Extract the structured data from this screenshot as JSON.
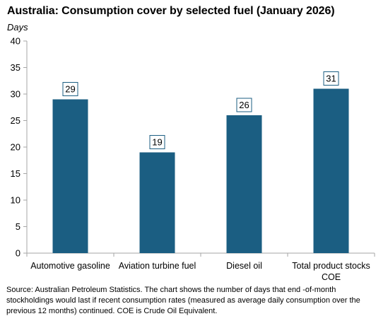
{
  "chart_data": {
    "type": "bar",
    "title": "Australia: Consumption cover by selected fuel (January 2026)",
    "ylabel": "Days",
    "xlabel": "",
    "categories": [
      [
        "Automotive gasoline"
      ],
      [
        "Aviation turbine fuel"
      ],
      [
        "Diesel oil"
      ],
      [
        "Total product stocks",
        "COE"
      ]
    ],
    "values": [
      29,
      19,
      26,
      31
    ],
    "data_labels": [
      "29",
      "19",
      "26",
      "31"
    ],
    "ylim": [
      0,
      40
    ],
    "yticks": [
      0,
      5,
      10,
      15,
      20,
      25,
      30,
      35,
      40
    ],
    "grid": false,
    "legend": "none",
    "colors": {
      "bar": "#1b5e82",
      "axis": "#a6a6a6",
      "label_border": "#1b5e82",
      "text": "#000000"
    }
  },
  "source_note": "Source: Australian Petroleum Statistics. The chart shows the number of days that end -of-month stockholdings would last if recent consumption rates (measured as average daily consumption over the previous 12 months) continued. COE is Crude Oil Equivalent."
}
